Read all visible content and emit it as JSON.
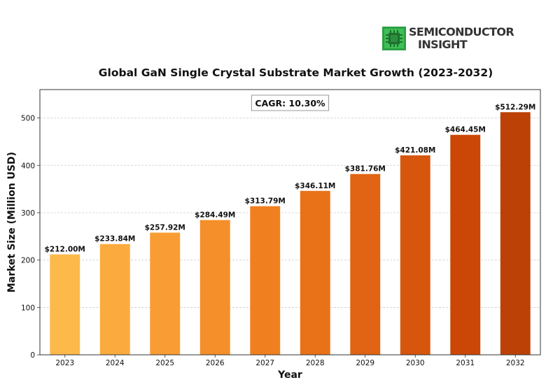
{
  "brand": {
    "line1": "SEMICONDUCTOR",
    "line2": "INSIGHT"
  },
  "chart_data": {
    "type": "bar",
    "title": "Global GaN Single Crystal Substrate Market Growth (2023-2032)",
    "xlabel": "Year",
    "ylabel": "Market Size (Million USD)",
    "categories": [
      "2023",
      "2024",
      "2025",
      "2026",
      "2027",
      "2028",
      "2029",
      "2030",
      "2031",
      "2032"
    ],
    "values": [
      212.0,
      233.84,
      257.92,
      284.49,
      313.79,
      346.11,
      381.76,
      421.08,
      464.45,
      512.29
    ],
    "value_labels": [
      "$212.00M",
      "$233.84M",
      "$257.92M",
      "$284.49M",
      "$313.79M",
      "$346.11M",
      "$381.76M",
      "$421.08M",
      "$464.45M",
      "$512.29M"
    ],
    "bar_colors": [
      "#FDB94A",
      "#FBAB3E",
      "#F99C33",
      "#F58F29",
      "#F0801F",
      "#E97218",
      "#E06413",
      "#D6560D",
      "#CB4707",
      "#BC4107"
    ],
    "ylim": [
      0,
      560
    ],
    "yticks": [
      0,
      100,
      200,
      300,
      400,
      500
    ],
    "grid": true,
    "annotation": "CAGR: 10.30%"
  }
}
